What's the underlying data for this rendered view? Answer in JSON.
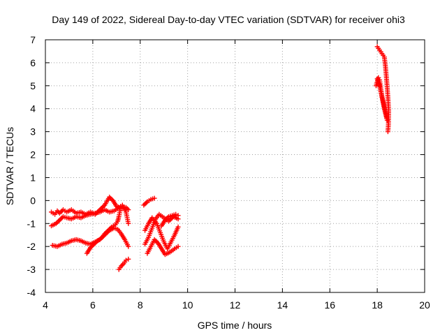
{
  "chart_data": {
    "type": "scatter",
    "title": "Day 149 of 2022, Sidereal Day-to-day VTEC variation (SDTVAR) for receiver ohi3",
    "xlabel": "GPS time / hours",
    "ylabel": "SDTVAR / TECUs",
    "xlim": [
      4,
      20
    ],
    "ylim": [
      -4,
      7
    ],
    "xticks": [
      "4",
      "6",
      "8",
      "10",
      "12",
      "14",
      "16",
      "18",
      "20"
    ],
    "yticks": [
      "-4",
      "-3",
      "-2",
      "-1",
      "0",
      "1",
      "2",
      "3",
      "4",
      "5",
      "6",
      "7"
    ],
    "grid": true,
    "marker": "+",
    "color": "#ff0000",
    "series": [
      {
        "segments": [
          [
            [
              4.25,
              -0.5
            ],
            [
              4.4,
              -0.6
            ],
            [
              4.5,
              -0.45
            ],
            [
              4.6,
              -0.55
            ],
            [
              4.75,
              -0.4
            ],
            [
              4.9,
              -0.5
            ],
            [
              5.1,
              -0.4
            ],
            [
              5.3,
              -0.55
            ],
            [
              5.5,
              -0.5
            ],
            [
              5.7,
              -0.6
            ],
            [
              5.9,
              -0.5
            ],
            [
              6.1,
              -0.6
            ],
            [
              6.3,
              -0.4
            ],
            [
              6.5,
              -0.2
            ],
            [
              6.7,
              0.15
            ],
            [
              6.85,
              0.0
            ],
            [
              7.0,
              -0.25
            ],
            [
              7.2,
              -0.35
            ],
            [
              7.4,
              -0.3
            ],
            [
              7.5,
              -0.4
            ]
          ],
          [
            [
              4.25,
              -1.1
            ],
            [
              4.45,
              -1.0
            ],
            [
              4.6,
              -0.85
            ],
            [
              4.75,
              -0.7
            ],
            [
              4.9,
              -0.75
            ],
            [
              5.1,
              -0.8
            ],
            [
              5.3,
              -0.7
            ],
            [
              5.5,
              -0.75
            ],
            [
              5.7,
              -0.65
            ],
            [
              5.9,
              -0.6
            ],
            [
              6.1,
              -0.55
            ],
            [
              6.3,
              -0.5
            ],
            [
              6.5,
              -0.4
            ],
            [
              6.7,
              -0.5
            ],
            [
              6.9,
              -0.45
            ],
            [
              7.1,
              -0.3
            ],
            [
              7.25,
              -0.2
            ],
            [
              7.4,
              -0.5
            ],
            [
              7.5,
              -1.0
            ]
          ],
          [
            [
              4.3,
              -1.95
            ],
            [
              4.5,
              -2.0
            ],
            [
              4.7,
              -1.9
            ],
            [
              4.9,
              -1.85
            ],
            [
              5.1,
              -1.75
            ],
            [
              5.3,
              -1.7
            ],
            [
              5.5,
              -1.75
            ],
            [
              5.7,
              -1.85
            ],
            [
              5.9,
              -1.9
            ],
            [
              6.1,
              -1.8
            ],
            [
              6.3,
              -1.7
            ],
            [
              6.5,
              -1.5
            ],
            [
              6.7,
              -1.3
            ],
            [
              6.9,
              -1.2
            ],
            [
              7.05,
              -1.25
            ],
            [
              7.2,
              -1.45
            ],
            [
              7.35,
              -1.7
            ],
            [
              7.5,
              -2.0
            ]
          ],
          [
            [
              5.75,
              -2.3
            ],
            [
              5.9,
              -2.05
            ],
            [
              6.05,
              -1.9
            ],
            [
              6.2,
              -1.75
            ],
            [
              6.35,
              -1.65
            ],
            [
              6.5,
              -1.45
            ],
            [
              6.65,
              -1.3
            ],
            [
              6.8,
              -1.15
            ],
            [
              6.95,
              -1.05
            ],
            [
              7.05,
              -0.9
            ],
            [
              7.1,
              -0.7
            ],
            [
              7.15,
              -0.45
            ]
          ],
          [
            [
              7.1,
              -3.0
            ],
            [
              7.2,
              -2.85
            ],
            [
              7.3,
              -2.75
            ],
            [
              7.4,
              -2.6
            ],
            [
              7.5,
              -2.55
            ]
          ],
          [
            [
              8.15,
              -0.2
            ],
            [
              8.3,
              -0.05
            ],
            [
              8.45,
              0.05
            ],
            [
              8.6,
              0.1
            ]
          ],
          [
            [
              8.2,
              -1.9
            ],
            [
              8.35,
              -1.6
            ],
            [
              8.5,
              -1.2
            ],
            [
              8.65,
              -0.8
            ],
            [
              8.8,
              -0.6
            ],
            [
              9.0,
              -0.75
            ],
            [
              9.2,
              -0.9
            ],
            [
              9.4,
              -0.7
            ],
            [
              9.6,
              -0.8
            ]
          ],
          [
            [
              8.2,
              -1.3
            ],
            [
              8.35,
              -1.0
            ],
            [
              8.5,
              -0.75
            ],
            [
              8.7,
              -1.0
            ],
            [
              8.85,
              -1.4
            ],
            [
              9.0,
              -1.8
            ],
            [
              9.15,
              -2.1
            ],
            [
              9.3,
              -1.8
            ],
            [
              9.45,
              -1.5
            ],
            [
              9.6,
              -1.15
            ]
          ],
          [
            [
              8.3,
              -2.3
            ],
            [
              8.45,
              -2.0
            ],
            [
              8.6,
              -1.7
            ],
            [
              8.75,
              -1.85
            ],
            [
              8.9,
              -2.1
            ],
            [
              9.05,
              -2.35
            ],
            [
              9.25,
              -2.25
            ],
            [
              9.45,
              -2.1
            ],
            [
              9.6,
              -2.0
            ]
          ],
          [
            [
              8.9,
              -1.1
            ],
            [
              9.05,
              -0.85
            ],
            [
              9.2,
              -0.7
            ],
            [
              9.35,
              -0.65
            ],
            [
              9.5,
              -0.6
            ],
            [
              9.6,
              -0.65
            ]
          ],
          [
            [
              18.0,
              6.7
            ],
            [
              18.1,
              6.55
            ],
            [
              18.2,
              6.4
            ],
            [
              18.3,
              6.25
            ],
            [
              18.35,
              5.8
            ],
            [
              18.4,
              5.2
            ],
            [
              18.45,
              4.5
            ],
            [
              18.48,
              3.9
            ],
            [
              18.47,
              3.3
            ],
            [
              18.45,
              3.0
            ]
          ],
          [
            [
              17.95,
              5.0
            ],
            [
              18.05,
              5.35
            ],
            [
              18.1,
              5.25
            ],
            [
              18.15,
              4.9
            ],
            [
              18.2,
              4.5
            ],
            [
              18.28,
              4.1
            ],
            [
              18.35,
              3.8
            ],
            [
              18.42,
              3.5
            ]
          ],
          [
            [
              18.0,
              5.3
            ],
            [
              18.08,
              5.1
            ],
            [
              18.15,
              4.75
            ],
            [
              18.25,
              4.3
            ],
            [
              18.33,
              3.9
            ],
            [
              18.4,
              3.6
            ]
          ]
        ]
      }
    ]
  }
}
